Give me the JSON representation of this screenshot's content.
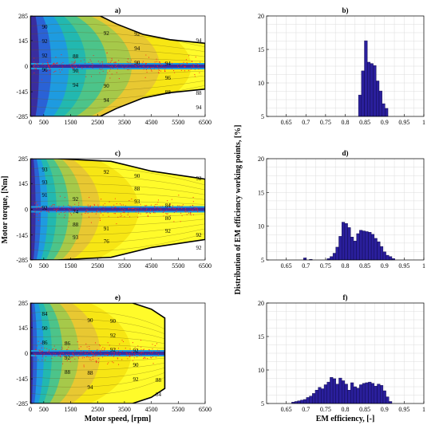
{
  "figure": {
    "ylabel_left": "Motor torque, [Nm]",
    "ylabel_right": "Distribution of EM efficiency working points, [%]"
  },
  "colors": {
    "hist_bar": "#2a1f9c",
    "hist_edge": "#0b0640",
    "boundary": "#000000",
    "points": "#ff1a1a",
    "map_scale": [
      "#3a2d9e",
      "#2a62d6",
      "#1e9be0",
      "#22b8b0",
      "#4cc48a",
      "#a6c94a",
      "#e8c832",
      "#f7e614",
      "#fffb2a"
    ]
  },
  "chart_data": [
    {
      "type": "heatmap",
      "panel": "a)",
      "title": "a)",
      "xlabel": "",
      "ylabel": "",
      "xlim": [
        0,
        6500
      ],
      "ylim": [
        -285,
        285
      ],
      "xticks": [
        "0",
        "500",
        "1500",
        "2500",
        "3500",
        "4500",
        "5500",
        "6500"
      ],
      "xtick_values": [
        0,
        500,
        1500,
        2500,
        3500,
        4500,
        5500,
        6500
      ],
      "yticks": [
        "285",
        "145",
        "0",
        "-145",
        "-285"
      ],
      "ytick_values": [
        285,
        145,
        0,
        -145,
        -285
      ],
      "contour_labels": [
        "90",
        "88",
        "90",
        "92",
        "94",
        "88",
        "92",
        "90",
        "94",
        "94",
        "96",
        "94",
        "92",
        "94",
        "92",
        "90",
        "88",
        "94",
        "96"
      ],
      "envelope": [
        [
          0,
          285
        ],
        [
          2600,
          285
        ],
        [
          3200,
          240
        ],
        [
          4200,
          180
        ],
        [
          5200,
          150
        ],
        [
          6500,
          130
        ]
      ]
    },
    {
      "type": "bar",
      "panel": "b)",
      "title": "b)",
      "xlabel": "",
      "ylabel": "",
      "xlim": [
        0.6,
        1.0
      ],
      "ylim": [
        5,
        20
      ],
      "xticks": [
        "0.65",
        "0.7",
        "0.75",
        "0.8",
        "0.85",
        "0.9",
        "0.95",
        "1"
      ],
      "yticks": [
        "5",
        "10",
        "15",
        "20"
      ],
      "bin_width": 0.0075,
      "bins": [
        {
          "x": 0.8375,
          "value": 8.2
        },
        {
          "x": 0.845,
          "value": 11.8
        },
        {
          "x": 0.8525,
          "value": 16.3
        },
        {
          "x": 0.86,
          "value": 13.1
        },
        {
          "x": 0.8675,
          "value": 12.9
        },
        {
          "x": 0.875,
          "value": 12.6
        },
        {
          "x": 0.8825,
          "value": 10.3
        },
        {
          "x": 0.89,
          "value": 8.8
        },
        {
          "x": 0.8975,
          "value": 6.9
        },
        {
          "x": 0.905,
          "value": 6.2
        }
      ]
    },
    {
      "type": "heatmap",
      "panel": "c)",
      "title": "c)",
      "xlabel": "",
      "ylabel": "Motor torque, [Nm]",
      "xlim": [
        0,
        6500
      ],
      "ylim": [
        -285,
        285
      ],
      "xticks": [
        "0",
        "500",
        "1500",
        "2500",
        "3500",
        "4500",
        "5500",
        "6500"
      ],
      "yticks": [
        "285",
        "145",
        "0",
        "-145",
        "-285"
      ],
      "contour_labels": [
        "93",
        "92",
        "91",
        "90",
        "84",
        "92",
        "93",
        "74",
        "76",
        "88",
        "80",
        "92",
        "91",
        "88",
        "92",
        "93",
        "92",
        "92",
        "92",
        "93"
      ],
      "envelope": [
        [
          0,
          285
        ],
        [
          1000,
          285
        ],
        [
          3000,
          270
        ],
        [
          4500,
          215
        ],
        [
          6500,
          170
        ]
      ]
    },
    {
      "type": "bar",
      "panel": "d)",
      "title": "d)",
      "xlabel": "",
      "ylabel": "Distribution of EM efficiency working points, [%]",
      "xlim": [
        0.6,
        1.0
      ],
      "ylim": [
        5,
        20
      ],
      "xticks": [
        "0.65",
        "0.7",
        "0.75",
        "0.8",
        "0.85",
        "0.9",
        "0.95",
        "1"
      ],
      "yticks": [
        "5",
        "10",
        "15",
        "20"
      ],
      "bin_width": 0.0075,
      "bins": [
        {
          "x": 0.6975,
          "value": 5.3
        },
        {
          "x": 0.7125,
          "value": 5.1
        },
        {
          "x": 0.7575,
          "value": 5.2
        },
        {
          "x": 0.765,
          "value": 5.5
        },
        {
          "x": 0.7725,
          "value": 6.0
        },
        {
          "x": 0.78,
          "value": 6.9
        },
        {
          "x": 0.7875,
          "value": 8.5
        },
        {
          "x": 0.795,
          "value": 10.6
        },
        {
          "x": 0.8025,
          "value": 10.4
        },
        {
          "x": 0.81,
          "value": 9.8
        },
        {
          "x": 0.8175,
          "value": 8.4
        },
        {
          "x": 0.825,
          "value": 7.8
        },
        {
          "x": 0.8325,
          "value": 8.9
        },
        {
          "x": 0.84,
          "value": 9.4
        },
        {
          "x": 0.8475,
          "value": 9.3
        },
        {
          "x": 0.855,
          "value": 9.2
        },
        {
          "x": 0.8625,
          "value": 9.1
        },
        {
          "x": 0.87,
          "value": 8.8
        },
        {
          "x": 0.8775,
          "value": 8.2
        },
        {
          "x": 0.885,
          "value": 7.7
        },
        {
          "x": 0.8925,
          "value": 7.0
        },
        {
          "x": 0.9,
          "value": 6.2
        },
        {
          "x": 0.9075,
          "value": 5.7
        },
        {
          "x": 0.915,
          "value": 5.5
        },
        {
          "x": 0.9225,
          "value": 5.2
        }
      ]
    },
    {
      "type": "heatmap",
      "panel": "e)",
      "title": "e)",
      "xlabel": "Motor speed, [rpm]",
      "ylabel": "",
      "xlim": [
        0,
        6500
      ],
      "ylim": [
        -285,
        285
      ],
      "xticks": [
        "0",
        "500",
        "1500",
        "2500",
        "3500",
        "4500",
        "5500",
        "6500"
      ],
      "yticks": [
        "285",
        "145",
        "0",
        "-145",
        "-285"
      ],
      "contour_labels": [
        "84",
        "86",
        "88",
        "90",
        "92",
        "88",
        "90",
        "92",
        "94",
        "92",
        "90",
        "84",
        "86",
        "88",
        "90",
        "92",
        "92"
      ],
      "envelope": [
        [
          0,
          285
        ],
        [
          3800,
          285
        ],
        [
          4500,
          250
        ],
        [
          5000,
          200
        ],
        [
          5000,
          -200
        ],
        [
          4500,
          -250
        ],
        [
          3800,
          -285
        ],
        [
          0,
          -285
        ]
      ]
    },
    {
      "type": "bar",
      "panel": "f)",
      "title": "f)",
      "xlabel": "EM efficiency, [-]",
      "ylabel": "",
      "xlim": [
        0.6,
        1.0
      ],
      "ylim": [
        5,
        20
      ],
      "xticks": [
        "0.65",
        "0.7",
        "0.75",
        "0.8",
        "0.85",
        "0.9",
        "0.95",
        "1"
      ],
      "yticks": [
        "5",
        "10",
        "15",
        "20"
      ],
      "bin_width": 0.0075,
      "bins": [
        {
          "x": 0.6675,
          "value": 5.2
        },
        {
          "x": 0.675,
          "value": 5.3
        },
        {
          "x": 0.6825,
          "value": 5.4
        },
        {
          "x": 0.69,
          "value": 5.5
        },
        {
          "x": 0.6975,
          "value": 5.6
        },
        {
          "x": 0.705,
          "value": 5.9
        },
        {
          "x": 0.7125,
          "value": 6.1
        },
        {
          "x": 0.72,
          "value": 6.5
        },
        {
          "x": 0.7275,
          "value": 7.0
        },
        {
          "x": 0.735,
          "value": 7.4
        },
        {
          "x": 0.7425,
          "value": 7.2
        },
        {
          "x": 0.75,
          "value": 7.8
        },
        {
          "x": 0.7575,
          "value": 8.2
        },
        {
          "x": 0.765,
          "value": 8.9
        },
        {
          "x": 0.7725,
          "value": 8.7
        },
        {
          "x": 0.78,
          "value": 7.9
        },
        {
          "x": 0.7875,
          "value": 8.8
        },
        {
          "x": 0.795,
          "value": 8.4
        },
        {
          "x": 0.8025,
          "value": 7.9
        },
        {
          "x": 0.81,
          "value": 7.0
        },
        {
          "x": 0.8175,
          "value": 8.1
        },
        {
          "x": 0.825,
          "value": 7.5
        },
        {
          "x": 0.8325,
          "value": 7.3
        },
        {
          "x": 0.84,
          "value": 7.8
        },
        {
          "x": 0.8475,
          "value": 8.0
        },
        {
          "x": 0.855,
          "value": 8.1
        },
        {
          "x": 0.8625,
          "value": 8.2
        },
        {
          "x": 0.87,
          "value": 8.0
        },
        {
          "x": 0.8775,
          "value": 7.6
        },
        {
          "x": 0.885,
          "value": 7.9
        },
        {
          "x": 0.8925,
          "value": 7.7
        },
        {
          "x": 0.9,
          "value": 6.9
        },
        {
          "x": 0.9075,
          "value": 6.0
        },
        {
          "x": 0.915,
          "value": 5.3
        }
      ]
    }
  ]
}
